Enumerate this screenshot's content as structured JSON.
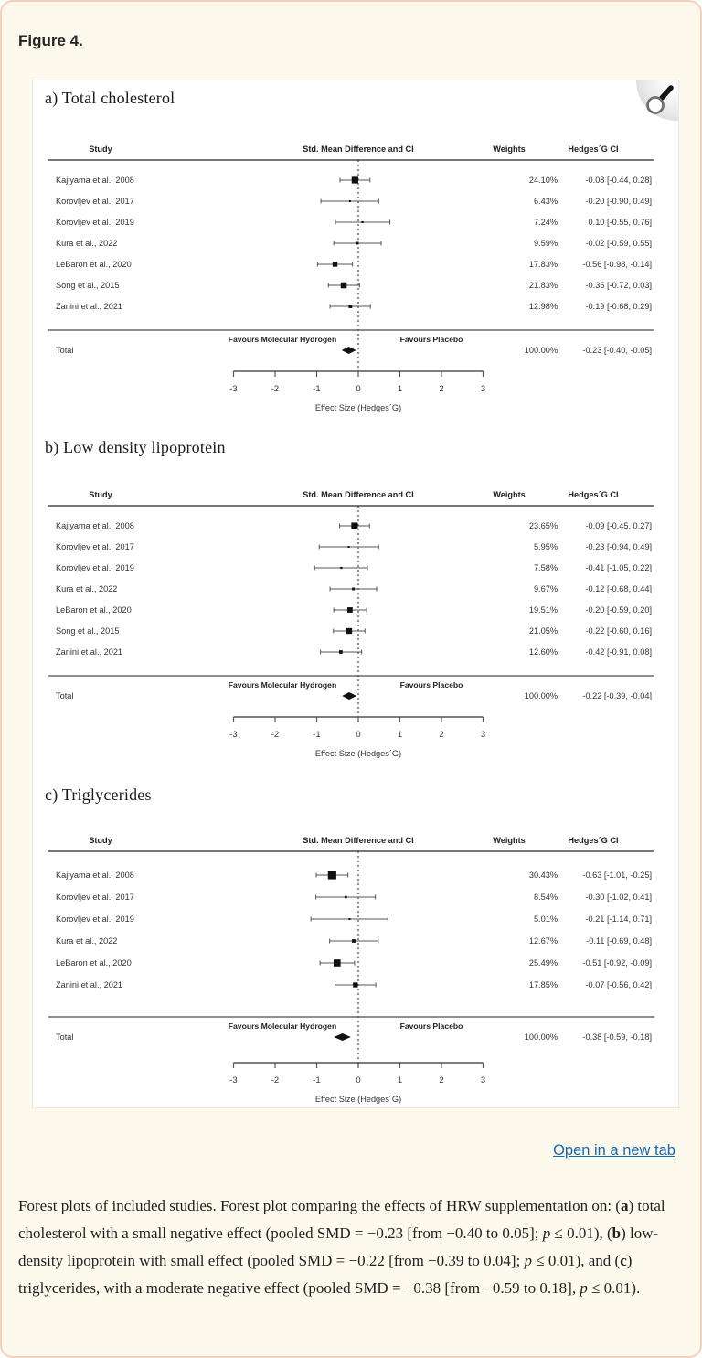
{
  "page": {
    "figure_label": "Figure 4.",
    "open_link_label": "Open in a new tab",
    "link_color": "#1668AD",
    "background_color": "#FDF9EC",
    "border_color": "#F3D0BE",
    "caption_segments": [
      {
        "t": "Forest plots of included studies. Forest plot comparing the effects of HRW supplementation on: ("
      },
      {
        "t": "a",
        "b": true
      },
      {
        "t": ") total cholesterol with a small negative effect (pooled SMD = −0.23 [from −0.40 to 0.05]; "
      },
      {
        "t": "p",
        "i": true
      },
      {
        "t": " ≤ 0.01), ("
      },
      {
        "t": "b",
        "b": true
      },
      {
        "t": ") low-density lipoprotein with small effect (pooled SMD = −0.22 [from −0.39 to 0.04]; "
      },
      {
        "t": "p",
        "i": true
      },
      {
        "t": " ≤ 0.01), and ("
      },
      {
        "t": "c",
        "b": true
      },
      {
        "t": ") triglycerides, with a moderate negative effect (pooled SMD = −0.38 [from −0.59 to 0.18], "
      },
      {
        "t": "p",
        "i": true
      },
      {
        "t": " ≤ 0.01)."
      }
    ]
  },
  "chart_data": [
    {
      "type": "forest",
      "title": "a) Total cholesterol",
      "columns": {
        "study": "Study",
        "smd": "Std. Mean Difference and CI",
        "weights": "Weights",
        "hedges": "Hedges´G CI"
      },
      "favours_left": "Favours Molecular Hydrogen",
      "favours_right": "Favours Placebo",
      "xlabel": "Effect Size (Hedges´G)",
      "xlim": [
        -3,
        3
      ],
      "xticks": [
        -3,
        -2,
        -1,
        0,
        1,
        2,
        3
      ],
      "studies": [
        {
          "name": "Kajiyama et al., 2008",
          "weight_pct": 24.1,
          "weight_label": "24.10%",
          "est": -0.08,
          "lo": -0.44,
          "hi": 0.28,
          "ci_label": "-0.08 [-0.44, 0.28]"
        },
        {
          "name": "Korovljev et al., 2017",
          "weight_pct": 6.43,
          "weight_label": "6.43%",
          "est": -0.2,
          "lo": -0.9,
          "hi": 0.49,
          "ci_label": "-0.20 [-0.90, 0.49]"
        },
        {
          "name": "Korovljev et al., 2019",
          "weight_pct": 7.24,
          "weight_label": "7.24%",
          "est": 0.1,
          "lo": -0.55,
          "hi": 0.76,
          "ci_label": "0.10 [-0.55, 0.76]"
        },
        {
          "name": "Kura et al., 2022",
          "weight_pct": 9.59,
          "weight_label": "9.59%",
          "est": -0.02,
          "lo": -0.59,
          "hi": 0.55,
          "ci_label": "-0.02 [-0.59, 0.55]"
        },
        {
          "name": "LeBaron et al., 2020",
          "weight_pct": 17.83,
          "weight_label": "17.83%",
          "est": -0.56,
          "lo": -0.98,
          "hi": -0.14,
          "ci_label": "-0.56 [-0.98, -0.14]"
        },
        {
          "name": "Song et al., 2015",
          "weight_pct": 21.83,
          "weight_label": "21.83%",
          "est": -0.35,
          "lo": -0.72,
          "hi": 0.03,
          "ci_label": "-0.35 [-0.72, 0.03]"
        },
        {
          "name": "Zanini et al., 2021",
          "weight_pct": 12.98,
          "weight_label": "12.98%",
          "est": -0.19,
          "lo": -0.68,
          "hi": 0.29,
          "ci_label": "-0.19 [-0.68, 0.29]"
        }
      ],
      "total": {
        "label": "Total",
        "weight_label": "100.00%",
        "est": -0.23,
        "lo": -0.4,
        "hi": -0.05,
        "ci_label": "-0.23 [-0.40, -0.05]"
      }
    },
    {
      "type": "forest",
      "title": "b) Low density lipoprotein",
      "columns": {
        "study": "Study",
        "smd": "Std. Mean Difference and CI",
        "weights": "Weights",
        "hedges": "Hedges´G CI"
      },
      "favours_left": "Favours Molecular Hydrogen",
      "favours_right": "Favours Placebo",
      "xlabel": "Effect Size (Hedges´G)",
      "xlim": [
        -3,
        3
      ],
      "xticks": [
        -3,
        -2,
        -1,
        0,
        1,
        2,
        3
      ],
      "studies": [
        {
          "name": "Kajiyama et al., 2008",
          "weight_pct": 23.65,
          "weight_label": "23.65%",
          "est": -0.09,
          "lo": -0.45,
          "hi": 0.27,
          "ci_label": "-0.09 [-0.45, 0.27]"
        },
        {
          "name": "Korovljev et al., 2017",
          "weight_pct": 5.95,
          "weight_label": "5.95%",
          "est": -0.23,
          "lo": -0.94,
          "hi": 0.49,
          "ci_label": "-0.23 [-0.94, 0.49]"
        },
        {
          "name": "Korovljev et al., 2019",
          "weight_pct": 7.58,
          "weight_label": "7.58%",
          "est": -0.41,
          "lo": -1.05,
          "hi": 0.22,
          "ci_label": "-0.41 [-1.05, 0.22]"
        },
        {
          "name": "Kura et al., 2022",
          "weight_pct": 9.67,
          "weight_label": "9.67%",
          "est": -0.12,
          "lo": -0.68,
          "hi": 0.44,
          "ci_label": "-0.12 [-0.68, 0.44]"
        },
        {
          "name": "LeBaron et al., 2020",
          "weight_pct": 19.51,
          "weight_label": "19.51%",
          "est": -0.2,
          "lo": -0.59,
          "hi": 0.2,
          "ci_label": "-0.20 [-0.59, 0.20]"
        },
        {
          "name": "Song et al., 2015",
          "weight_pct": 21.05,
          "weight_label": "21.05%",
          "est": -0.22,
          "lo": -0.6,
          "hi": 0.16,
          "ci_label": "-0.22 [-0.60, 0.16]"
        },
        {
          "name": "Zanini et al., 2021",
          "weight_pct": 12.6,
          "weight_label": "12.60%",
          "est": -0.42,
          "lo": -0.91,
          "hi": 0.08,
          "ci_label": "-0.42 [-0.91, 0.08]"
        }
      ],
      "total": {
        "label": "Total",
        "weight_label": "100.00%",
        "est": -0.22,
        "lo": -0.39,
        "hi": -0.04,
        "ci_label": "-0.22 [-0.39, -0.04]"
      }
    },
    {
      "type": "forest",
      "title": "c) Triglycerides",
      "columns": {
        "study": "Study",
        "smd": "Std. Mean Difference and CI",
        "weights": "Weights",
        "hedges": "Hedges´G CI"
      },
      "favours_left": "Favours Molecular Hydrogen",
      "favours_right": "Favours Placebo",
      "xlabel": "Effect Size (Hedges´G)",
      "xlim": [
        -3,
        3
      ],
      "xticks": [
        -3,
        -2,
        -1,
        0,
        1,
        2,
        3
      ],
      "studies": [
        {
          "name": "Kajiyama et al., 2008",
          "weight_pct": 30.43,
          "weight_label": "30.43%",
          "est": -0.63,
          "lo": -1.01,
          "hi": -0.25,
          "ci_label": "-0.63 [-1.01, -0.25]"
        },
        {
          "name": "Korovljev et al., 2017",
          "weight_pct": 8.54,
          "weight_label": "8.54%",
          "est": -0.3,
          "lo": -1.02,
          "hi": 0.41,
          "ci_label": "-0.30 [-1.02, 0.41]"
        },
        {
          "name": "Korovljev et al., 2019",
          "weight_pct": 5.01,
          "weight_label": "5.01%",
          "est": -0.21,
          "lo": -1.14,
          "hi": 0.71,
          "ci_label": "-0.21 [-1.14, 0.71]"
        },
        {
          "name": "Kura et al., 2022",
          "weight_pct": 12.67,
          "weight_label": "12.67%",
          "est": -0.11,
          "lo": -0.69,
          "hi": 0.48,
          "ci_label": "-0.11 [-0.69, 0.48]"
        },
        {
          "name": "LeBaron et al., 2020",
          "weight_pct": 25.49,
          "weight_label": "25.49%",
          "est": -0.51,
          "lo": -0.92,
          "hi": -0.09,
          "ci_label": "-0.51 [-0.92, -0.09]"
        },
        {
          "name": "Zanini et al., 2021",
          "weight_pct": 17.85,
          "weight_label": "17.85%",
          "est": -0.07,
          "lo": -0.56,
          "hi": 0.42,
          "ci_label": "-0.07 [-0.56, 0.42]"
        }
      ],
      "total": {
        "label": "Total",
        "weight_label": "100.00%",
        "est": -0.38,
        "lo": -0.59,
        "hi": -0.18,
        "ci_label": "-0.38 [-0.59, -0.18]"
      }
    }
  ]
}
